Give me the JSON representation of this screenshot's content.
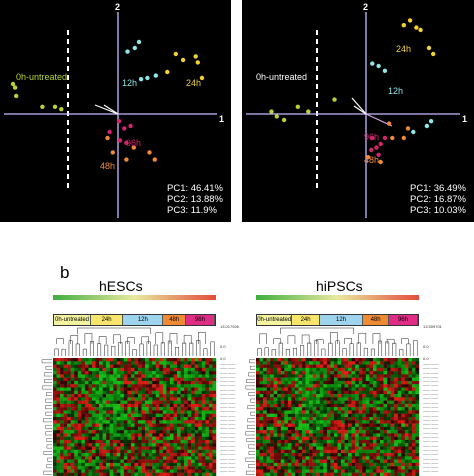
{
  "chart_data": [
    {
      "type": "scatter",
      "panel": "hESCs PCA",
      "axes": {
        "x_label": "1",
        "y_label": "2"
      },
      "grid": false,
      "variance": [
        "PC1: 46.41%",
        "PC2: 13.88%",
        "PC3: 11.9%"
      ],
      "groups": [
        {
          "name": "0h-untreated",
          "color": "#b5d335",
          "points": [
            [
              -1.0,
              0.25
            ],
            [
              -0.97,
              0.15
            ],
            [
              -0.98,
              0.22
            ],
            [
              -0.72,
              0.06
            ],
            [
              -0.6,
              0.06
            ],
            [
              -0.54,
              0.04
            ]
          ]
        },
        {
          "name": "12h",
          "color": "#8fe6e6",
          "points": [
            [
              0.09,
              0.52
            ],
            [
              0.16,
              0.55
            ],
            [
              0.22,
              0.29
            ],
            [
              0.28,
              0.3
            ],
            [
              0.36,
              0.32
            ],
            [
              0.2,
              0.6
            ]
          ]
        },
        {
          "name": "24h",
          "color": "#f2d232",
          "points": [
            [
              0.47,
              0.35
            ],
            [
              0.55,
              0.5
            ],
            [
              0.62,
              0.45
            ],
            [
              0.74,
              0.48
            ],
            [
              0.76,
              0.43
            ],
            [
              0.8,
              0.3
            ]
          ]
        },
        {
          "name": "96h",
          "color": "#d5246e",
          "points": [
            [
              0.01,
              -0.06
            ],
            [
              0.06,
              -0.12
            ],
            [
              0.12,
              -0.1
            ],
            [
              0.02,
              -0.22
            ],
            [
              0.08,
              -0.24
            ],
            [
              -0.08,
              -0.15
            ]
          ]
        },
        {
          "name": "48h",
          "color": "#f0883a",
          "points": [
            [
              -0.1,
              -0.2
            ],
            [
              -0.05,
              -0.32
            ],
            [
              0.08,
              -0.38
            ],
            [
              0.3,
              -0.32
            ],
            [
              0.35,
              -0.38
            ],
            [
              0.15,
              -0.28
            ]
          ]
        }
      ],
      "labels": [
        {
          "text": "0h-untreated",
          "color": "#b5d335"
        },
        {
          "text": "12h",
          "color": "#8fe6e6"
        },
        {
          "text": "24h",
          "color": "#f2d232"
        },
        {
          "text": "96h",
          "color": "#d5246e"
        },
        {
          "text": "48h",
          "color": "#f0883a"
        }
      ]
    },
    {
      "type": "scatter",
      "panel": "hiPSCs PCA",
      "axes": {
        "x_label": "1",
        "y_label": "2"
      },
      "grid": false,
      "variance": [
        "PC1: 36.49%",
        "PC2: 16.87%",
        "PC3: 10.03%"
      ],
      "groups": [
        {
          "name": "0h-untreated",
          "color": "#b5d335",
          "points": [
            [
              -0.9,
              0.02
            ],
            [
              -0.85,
              -0.02
            ],
            [
              -0.78,
              -0.05
            ],
            [
              -0.65,
              0.06
            ],
            [
              -0.55,
              0.02
            ],
            [
              -0.3,
              0.12
            ]
          ]
        },
        {
          "name": "12h",
          "color": "#8fe6e6",
          "points": [
            [
              0.06,
              0.42
            ],
            [
              0.12,
              0.4
            ],
            [
              0.18,
              0.36
            ],
            [
              0.45,
              -0.15
            ],
            [
              0.58,
              -0.1
            ],
            [
              0.62,
              -0.06
            ]
          ]
        },
        {
          "name": "24h",
          "color": "#f2d232",
          "points": [
            [
              0.36,
              0.74
            ],
            [
              0.42,
              0.78
            ],
            [
              0.48,
              0.72
            ],
            [
              0.52,
              0.7
            ],
            [
              0.6,
              0.55
            ],
            [
              0.64,
              0.5
            ]
          ]
        },
        {
          "name": "96h",
          "color": "#d5246e",
          "points": [
            [
              0.06,
              -0.2
            ],
            [
              0.1,
              -0.28
            ],
            [
              0.14,
              -0.25
            ],
            [
              0.18,
              -0.2
            ],
            [
              0.12,
              -0.34
            ],
            [
              0.05,
              -0.3
            ]
          ]
        },
        {
          "name": "48h",
          "color": "#f0883a",
          "points": [
            [
              0.02,
              -0.36
            ],
            [
              0.14,
              -0.4
            ],
            [
              0.4,
              -0.12
            ],
            [
              0.36,
              -0.2
            ],
            [
              0.25,
              -0.2
            ],
            [
              0.22,
              -0.08
            ]
          ]
        }
      ],
      "labels": [
        {
          "text": "0h-untreated",
          "color": "#ffffff"
        },
        {
          "text": "24h",
          "color": "#f2d232"
        },
        {
          "text": "12h",
          "color": "#8fe6e6"
        },
        {
          "text": "96h",
          "color": "#d5246e"
        },
        {
          "text": "48h",
          "color": "#f0883a"
        }
      ]
    },
    {
      "type": "heatmap",
      "title": "hESCs",
      "groups": [
        {
          "name": "0h-untreated",
          "color": "#f3f3a0",
          "share": 0.23
        },
        {
          "name": "24h",
          "color": "#f7e66b",
          "share": 0.2
        },
        {
          "name": "12h",
          "color": "#9fd4ef",
          "share": 0.25
        },
        {
          "name": "48h",
          "color": "#ef8a35",
          "share": 0.14
        },
        {
          "name": "96h",
          "color": "#df2d86",
          "share": 0.18
        }
      ],
      "side_values": [
        "13.017926",
        "0.0",
        "0.0"
      ],
      "color_scale": [
        "#2fae2f",
        "#000000",
        "#e53b2d"
      ]
    },
    {
      "type": "heatmap",
      "title": "hiPSCs",
      "groups": [
        {
          "name": "0h-untreated",
          "color": "#f3f3a0",
          "share": 0.22
        },
        {
          "name": "24h",
          "color": "#f7e66b",
          "share": 0.17
        },
        {
          "name": "12h",
          "color": "#9fd4ef",
          "share": 0.27
        },
        {
          "name": "48h",
          "color": "#ef8a35",
          "share": 0.16
        },
        {
          "name": "96h",
          "color": "#df2d86",
          "share": 0.18
        }
      ],
      "side_values": [
        "13.599701",
        "0.0",
        "0.0"
      ],
      "color_scale": [
        "#2fae2f",
        "#000000",
        "#e53b2d"
      ]
    }
  ],
  "panel_b_letter": "b"
}
